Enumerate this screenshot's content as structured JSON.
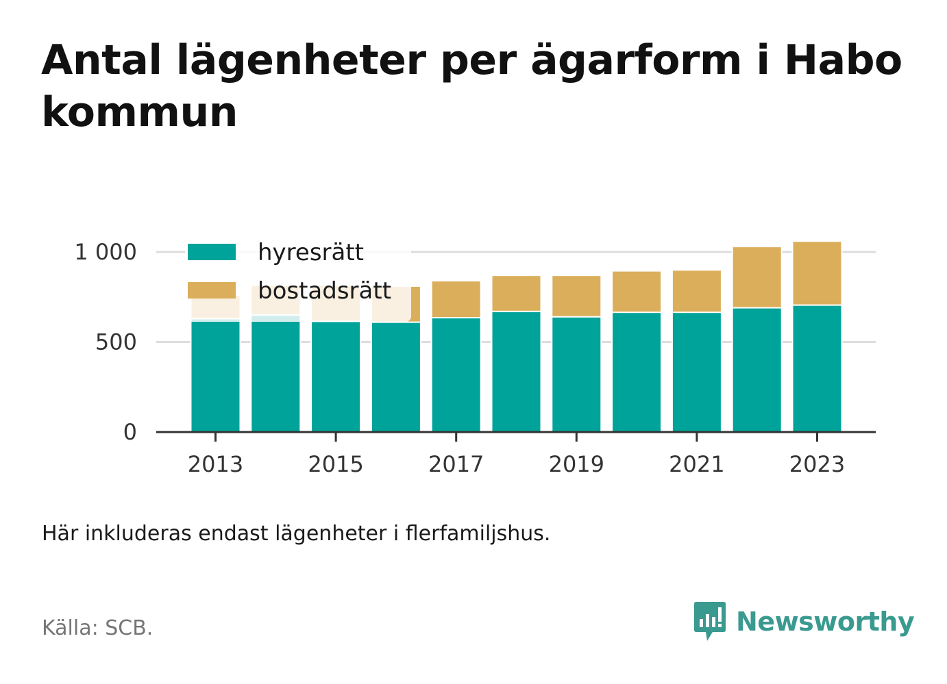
{
  "title": "Antal lägenheter per ägarform i Habo kommun",
  "note": "Här inkluderas endast lägenheter i flerfamiljshus.",
  "source": "Källa: SCB.",
  "brand": {
    "name": "Newsworthy",
    "icon": "newsworthy-logo-icon",
    "color": "#3a9a90"
  },
  "colors": {
    "hyresratt": "#00a39a",
    "bostadsratt": "#dbae5b",
    "grid": "#dddddd",
    "axis": "#333333"
  },
  "chart_data": {
    "type": "bar",
    "stacked": true,
    "title": "Antal lägenheter per ägarform i Habo kommun",
    "xlabel": "",
    "ylabel": "",
    "categories": [
      2013,
      2014,
      2015,
      2016,
      2017,
      2018,
      2019,
      2020,
      2021,
      2022,
      2023
    ],
    "x_tick_labels": [
      "2013",
      "2015",
      "2017",
      "2019",
      "2021",
      "2023"
    ],
    "y_ticks": [
      0,
      500,
      1000
    ],
    "y_tick_labels": [
      "0",
      "500",
      "1 000"
    ],
    "ylim": [
      0,
      1100
    ],
    "grid": true,
    "legend_position": "top-left",
    "series": [
      {
        "name": "hyresrätt",
        "color": "#00a39a",
        "values": [
          630,
          650,
          615,
          610,
          635,
          670,
          640,
          665,
          665,
          690,
          705
        ]
      },
      {
        "name": "bostadsrätt",
        "color": "#dbae5b",
        "values": [
          130,
          165,
          200,
          200,
          205,
          200,
          230,
          230,
          235,
          340,
          355
        ]
      }
    ]
  }
}
